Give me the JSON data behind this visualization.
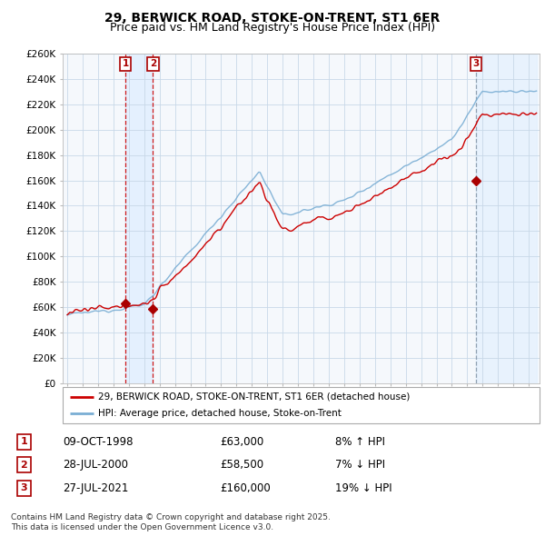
{
  "title": "29, BERWICK ROAD, STOKE-ON-TRENT, ST1 6ER",
  "subtitle": "Price paid vs. HM Land Registry's House Price Index (HPI)",
  "ylim": [
    0,
    260000
  ],
  "yticks": [
    0,
    20000,
    40000,
    60000,
    80000,
    100000,
    120000,
    140000,
    160000,
    180000,
    200000,
    220000,
    240000,
    260000
  ],
  "ytick_labels": [
    "£0",
    "£20K",
    "£40K",
    "£60K",
    "£80K",
    "£100K",
    "£120K",
    "£140K",
    "£160K",
    "£180K",
    "£200K",
    "£220K",
    "£240K",
    "£260K"
  ],
  "hpi_color": "#7aaed4",
  "price_color": "#cc0000",
  "marker_color": "#aa0000",
  "vline_color_red": "#cc0000",
  "vline_color_gray": "#8899aa",
  "grid_color": "#c8d8e8",
  "shade_color": "#ddeeff",
  "plot_bg": "#f5f8fc",
  "background_color": "#ffffff",
  "legend_entry1": "29, BERWICK ROAD, STOKE-ON-TRENT, ST1 6ER (detached house)",
  "legend_entry2": "HPI: Average price, detached house, Stoke-on-Trent",
  "transaction1_date": "09-OCT-1998",
  "transaction1_price": "£63,000",
  "transaction1_hpi": "8% ↑ HPI",
  "transaction1_year": 1998.79,
  "transaction2_date": "28-JUL-2000",
  "transaction2_price": "£58,500",
  "transaction2_hpi": "7% ↓ HPI",
  "transaction2_year": 2000.57,
  "transaction3_date": "27-JUL-2021",
  "transaction3_price": "£160,000",
  "transaction3_hpi": "19% ↓ HPI",
  "transaction3_year": 2021.57,
  "footer": "Contains HM Land Registry data © Crown copyright and database right 2025.\nThis data is licensed under the Open Government Licence v3.0.",
  "title_fontsize": 10,
  "subtitle_fontsize": 9
}
